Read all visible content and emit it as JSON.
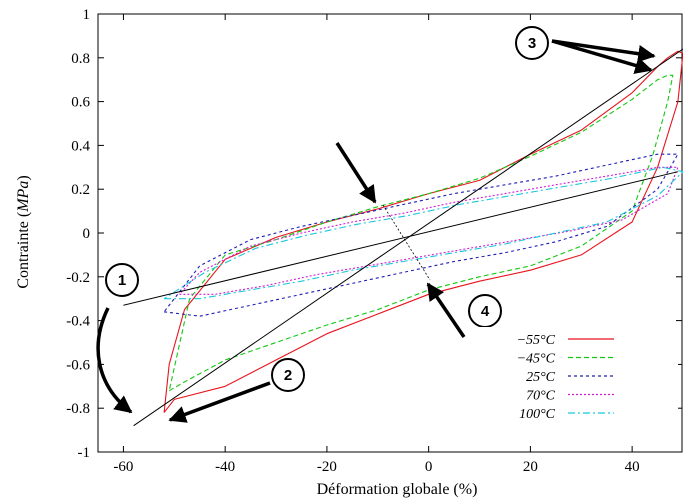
{
  "chart_data": {
    "type": "line",
    "xlabel": "Déformation globale (%)",
    "ylabel_prefix": "Contrainte (",
    "ylabel_unit": "MPa",
    "ylabel_suffix": ")",
    "xlim": [
      -65,
      50
    ],
    "ylim": [
      -1,
      1
    ],
    "xticks": [
      -60,
      -40,
      -20,
      0,
      20,
      40
    ],
    "xtick_labels": [
      "-60",
      "-40",
      "-20",
      "0",
      "20",
      "40"
    ],
    "yticks": [
      -1,
      -0.8,
      -0.6,
      -0.4,
      -0.2,
      0,
      0.2,
      0.4,
      0.6,
      0.8,
      1
    ],
    "ytick_labels": [
      "-1",
      "-0.8",
      "-0.6",
      "-0.4",
      "-0.2",
      "0",
      "0.2",
      "0.4",
      "0.6",
      "0.8",
      "1"
    ],
    "grid": false,
    "legend_position": "bottom-right",
    "series": [
      {
        "name": "−55°C",
        "color": "#e8141e",
        "dash": "",
        "x": [
          -52,
          -50,
          -40,
          -30,
          -20,
          -10,
          0,
          10,
          20,
          30,
          40,
          45,
          49,
          50,
          49,
          47,
          45,
          40,
          30,
          20,
          10,
          0,
          -10,
          -20,
          -30,
          -40,
          -48,
          -51,
          -52
        ],
        "y": [
          -0.82,
          -0.76,
          -0.7,
          -0.58,
          -0.46,
          -0.37,
          -0.28,
          -0.22,
          -0.17,
          -0.1,
          0.05,
          0.3,
          0.6,
          0.82,
          0.83,
          0.8,
          0.76,
          0.64,
          0.47,
          0.36,
          0.24,
          0.18,
          0.11,
          0.05,
          -0.02,
          -0.12,
          -0.35,
          -0.6,
          -0.82
        ]
      },
      {
        "name": "−45°C",
        "color": "#14c814",
        "dash": "5,3",
        "x": [
          -51,
          -48,
          -40,
          -30,
          -20,
          -10,
          0,
          10,
          20,
          30,
          40,
          44,
          47,
          48,
          47,
          45,
          40,
          30,
          20,
          10,
          0,
          -10,
          -20,
          -30,
          -40,
          -47,
          -51
        ],
        "y": [
          -0.72,
          -0.68,
          -0.58,
          -0.5,
          -0.42,
          -0.35,
          -0.26,
          -0.2,
          -0.15,
          -0.06,
          0.1,
          0.35,
          0.6,
          0.72,
          0.72,
          0.7,
          0.61,
          0.46,
          0.35,
          0.25,
          0.18,
          0.12,
          0.05,
          -0.03,
          -0.1,
          -0.3,
          -0.72
        ]
      },
      {
        "name": "25°C",
        "color": "#1e1eb4",
        "dash": "3,3",
        "x": [
          -52,
          -45,
          -35,
          -25,
          -15,
          -5,
          5,
          15,
          25,
          35,
          45,
          49,
          45,
          35,
          25,
          15,
          5,
          -5,
          -15,
          -25,
          -35,
          -45,
          -52
        ],
        "y": [
          -0.36,
          -0.38,
          -0.33,
          -0.28,
          -0.23,
          -0.18,
          -0.13,
          -0.09,
          -0.04,
          0.03,
          0.2,
          0.36,
          0.36,
          0.31,
          0.26,
          0.22,
          0.18,
          0.13,
          0.08,
          0.03,
          -0.03,
          -0.15,
          -0.36
        ]
      },
      {
        "name": "70°C",
        "color": "#d21ed2",
        "dash": "2,2",
        "x": [
          -49,
          -42,
          -32,
          -22,
          -12,
          -2,
          8,
          18,
          28,
          38,
          47,
          49,
          45,
          35,
          25,
          15,
          5,
          -5,
          -15,
          -25,
          -35,
          -45,
          -49
        ],
        "y": [
          -0.28,
          -0.28,
          -0.24,
          -0.19,
          -0.15,
          -0.11,
          -0.07,
          -0.03,
          0.01,
          0.06,
          0.18,
          0.3,
          0.3,
          0.26,
          0.22,
          0.18,
          0.14,
          0.09,
          0.05,
          0.0,
          -0.06,
          -0.18,
          -0.28
        ]
      },
      {
        "name": "100°C",
        "color": "#19c8dc",
        "dash": "7,3,2,3",
        "x": [
          -52,
          -45,
          -35,
          -25,
          -15,
          -5,
          5,
          15,
          25,
          35,
          45,
          50,
          46,
          36,
          26,
          16,
          6,
          -4,
          -14,
          -24,
          -34,
          -44,
          -52
        ],
        "y": [
          -0.3,
          -0.3,
          -0.26,
          -0.22,
          -0.17,
          -0.13,
          -0.09,
          -0.05,
          0.0,
          0.05,
          0.17,
          0.28,
          0.3,
          0.25,
          0.21,
          0.17,
          0.13,
          0.08,
          0.04,
          -0.01,
          -0.07,
          -0.18,
          -0.3
        ]
      }
    ],
    "reference_lines": [
      {
        "x": [
          -58,
          50
        ],
        "y": [
          -0.88,
          0.84
        ]
      },
      {
        "x": [
          -60,
          49
        ],
        "y": [
          -0.33,
          0.28
        ]
      }
    ],
    "annotations": [
      "1",
      "2",
      "3",
      "4"
    ]
  }
}
